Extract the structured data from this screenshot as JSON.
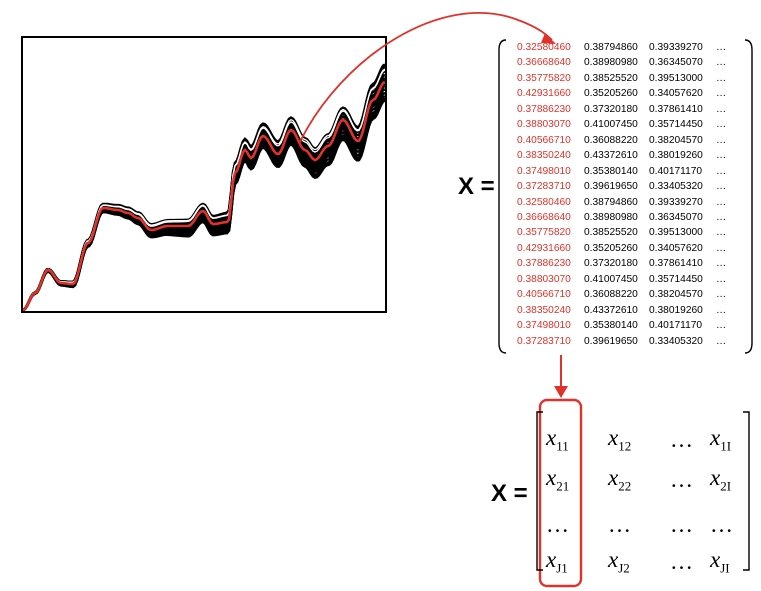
{
  "labels": {
    "numeric_matrix": "X =",
    "symbolic_matrix": "X ="
  },
  "colors": {
    "highlight": "#e0322a",
    "spectra": "#000000",
    "white_spectra": "#ffffff"
  },
  "numeric_rows": [
    [
      "0.32580460",
      "0.38794860",
      "0.39339270",
      "…"
    ],
    [
      "0.36668640",
      "0.38980980",
      "0.36345070",
      "…"
    ],
    [
      "0.35775820",
      "0.38525520",
      "0.39513000",
      "…"
    ],
    [
      "0.42931660",
      "0.35205260",
      "0.34057620",
      "…"
    ],
    [
      "0.37886230",
      "0.37320180",
      "0.37861410",
      "…"
    ],
    [
      "0.38803070",
      "0.41007450",
      "0.35714450",
      "…"
    ],
    [
      "0.40566710",
      "0.36088220",
      "0.38204570",
      "…"
    ],
    [
      "0.38350240",
      "0.43372610",
      "0.38019260",
      "…"
    ],
    [
      "0.37498010",
      "0.35380140",
      "0.40171170",
      "…"
    ],
    [
      "0.37283710",
      "0.39619650",
      "0.33405320",
      "…"
    ],
    [
      "0.32580460",
      "0.38794860",
      "0.39339270",
      "…"
    ],
    [
      "0.36668640",
      "0.38980980",
      "0.36345070",
      "…"
    ],
    [
      "0.35775820",
      "0.38525520",
      "0.39513000",
      "…"
    ],
    [
      "0.42931660",
      "0.35205260",
      "0.34057620",
      "…"
    ],
    [
      "0.37886230",
      "0.37320180",
      "0.37861410",
      "…"
    ],
    [
      "0.38803070",
      "0.41007450",
      "0.35714450",
      "…"
    ],
    [
      "0.40566710",
      "0.36088220",
      "0.38204570",
      "…"
    ],
    [
      "0.38350240",
      "0.43372610",
      "0.38019260",
      "…"
    ],
    [
      "0.37498010",
      "0.35380140",
      "0.40171170",
      "…"
    ],
    [
      "0.37283710",
      "0.39619650",
      "0.33405320",
      "…"
    ]
  ],
  "symbolic": {
    "x": "x",
    "dots": "…",
    "rows": [
      [
        "11",
        "12",
        "…",
        "1I"
      ],
      [
        "21",
        "22",
        "…",
        "2I"
      ],
      [
        "…",
        "…",
        "…",
        "…"
      ],
      [
        "J1",
        "J2",
        "…",
        "JI"
      ]
    ]
  }
}
